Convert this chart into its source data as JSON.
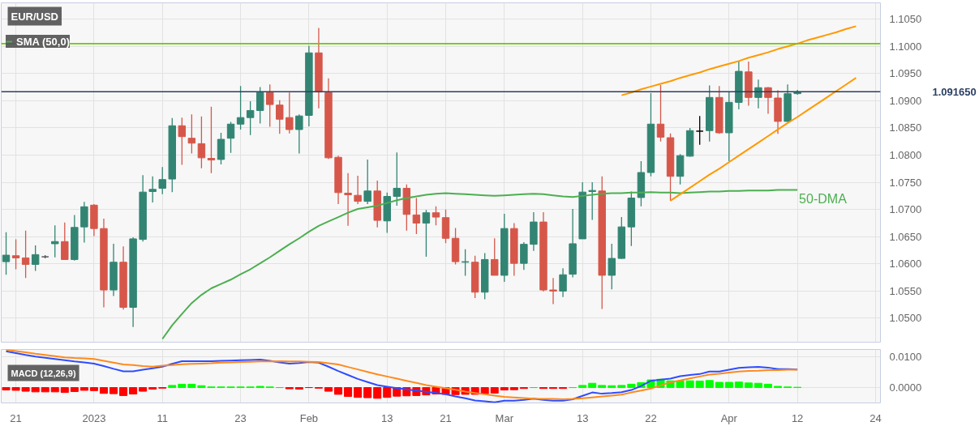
{
  "chart_data": [
    {
      "type": "candlestick",
      "title": "EUR/USD",
      "categories": [
        null,
        null,
        null,
        null,
        null,
        null,
        null,
        null,
        null,
        null,
        null,
        null,
        null,
        null,
        null,
        null,
        null,
        null,
        null,
        null,
        null,
        null,
        null,
        null,
        null,
        null,
        null,
        null,
        null,
        null,
        null,
        null,
        null,
        null,
        null,
        null,
        null,
        null,
        null,
        null,
        null,
        null,
        null,
        null,
        null,
        null,
        null,
        null,
        null,
        null,
        null,
        null,
        null,
        null,
        null,
        null,
        null,
        null,
        null,
        null,
        null,
        null,
        null,
        null,
        null,
        null,
        null,
        null,
        null,
        null,
        null,
        null,
        null,
        null,
        null,
        null,
        null,
        null,
        null,
        null,
        null,
        null,
        null,
        null,
        null,
        null,
        null,
        null,
        null,
        null
      ],
      "ohlc": [
        [
          1.0604,
          1.0658,
          1.058,
          1.0616
        ],
        [
          1.0615,
          1.0645,
          1.059,
          1.0611
        ],
        [
          1.0611,
          1.0661,
          1.0574,
          1.0599
        ],
        [
          1.0599,
          1.0634,
          1.0587,
          1.0617
        ],
        [
          1.0613,
          1.0616,
          1.061,
          1.0613
        ],
        [
          1.0637,
          1.0671,
          1.0612,
          1.0641
        ],
        [
          1.0641,
          1.0676,
          1.0608,
          1.0608
        ],
        [
          1.0608,
          1.069,
          1.0606,
          1.0667
        ],
        [
          1.0668,
          1.0714,
          1.0639,
          1.0705
        ],
        [
          1.0708,
          1.071,
          1.0651,
          1.0665
        ],
        [
          1.0665,
          1.0683,
          1.052,
          1.0552
        ],
        [
          1.0552,
          1.0637,
          1.0541,
          1.0603
        ],
        [
          1.0603,
          1.0632,
          1.0516,
          1.052
        ],
        [
          1.052,
          1.0649,
          1.0484,
          1.0646
        ],
        [
          1.0645,
          1.0763,
          1.0641,
          1.0732
        ],
        [
          1.0733,
          1.0761,
          1.0713,
          1.0737
        ],
        [
          1.0739,
          1.0778,
          1.0728,
          1.0755
        ],
        [
          1.0756,
          1.0868,
          1.0732,
          1.0854
        ],
        [
          1.0854,
          1.0869,
          1.0782,
          1.0834
        ],
        [
          1.0831,
          1.0875,
          1.0803,
          1.0822
        ],
        [
          1.0821,
          1.0871,
          1.0776,
          1.0795
        ],
        [
          1.0794,
          1.0889,
          1.0767,
          1.0791
        ],
        [
          1.0792,
          1.0841,
          1.0783,
          1.0829
        ],
        [
          1.0831,
          1.0861,
          1.0804,
          1.0857
        ],
        [
          1.0857,
          1.0927,
          1.0847,
          1.0869
        ],
        [
          1.0869,
          1.0899,
          1.0837,
          1.0882
        ],
        [
          1.0882,
          1.0925,
          1.0858,
          1.0915
        ],
        [
          1.0915,
          1.093,
          1.0852,
          1.0893
        ],
        [
          1.0892,
          1.0901,
          1.0839,
          1.0866
        ],
        [
          1.0869,
          1.0915,
          1.084,
          1.0847
        ],
        [
          1.0847,
          1.0875,
          1.0803,
          1.0872
        ],
        [
          1.0873,
          1.1001,
          1.0853,
          1.0988
        ],
        [
          1.0988,
          1.1034,
          1.0886,
          1.0916
        ],
        [
          1.0915,
          1.0941,
          1.0793,
          1.0795
        ],
        [
          1.0796,
          1.0799,
          1.071,
          1.0731
        ],
        [
          1.073,
          1.0767,
          1.067,
          1.0727
        ],
        [
          1.0726,
          1.0762,
          1.071,
          1.0715
        ],
        [
          1.0715,
          1.0792,
          1.071,
          1.0734
        ],
        [
          1.0734,
          1.0753,
          1.0667,
          1.068
        ],
        [
          1.0679,
          1.0731,
          1.0657,
          1.0724
        ],
        [
          1.0724,
          1.0805,
          1.0707,
          1.0739
        ],
        [
          1.0739,
          1.0746,
          1.0661,
          1.0691
        ],
        [
          1.069,
          1.0721,
          1.0655,
          1.0675
        ],
        [
          1.0675,
          1.0699,
          1.0613,
          1.0694
        ],
        [
          1.0694,
          1.0706,
          1.0671,
          1.0686
        ],
        [
          1.0685,
          1.07,
          1.0638,
          1.0647
        ],
        [
          1.0647,
          1.0666,
          1.0599,
          1.0604
        ],
        [
          1.0603,
          1.0627,
          1.0578,
          1.0604
        ],
        [
          1.0603,
          1.0615,
          1.0537,
          1.0548
        ],
        [
          1.0548,
          1.062,
          1.0535,
          1.0608
        ],
        [
          1.0608,
          1.0647,
          1.0579,
          1.0579
        ],
        [
          1.0579,
          1.0692,
          1.0567,
          1.0665
        ],
        [
          1.0665,
          1.0675,
          1.0578,
          1.0601
        ],
        [
          1.0601,
          1.064,
          1.0589,
          1.0636
        ],
        [
          1.0636,
          1.0695,
          1.0624,
          1.0677
        ],
        [
          1.0677,
          1.0695,
          1.0549,
          1.0552
        ],
        [
          1.0552,
          1.0574,
          1.0526,
          1.055
        ],
        [
          1.055,
          1.0592,
          1.0539,
          1.058
        ],
        [
          1.0581,
          1.0701,
          1.0575,
          1.0637
        ],
        [
          1.0646,
          1.075,
          1.0646,
          1.0732
        ],
        [
          1.0733,
          1.075,
          1.0681,
          1.0735
        ],
        [
          1.0734,
          1.0761,
          1.0517,
          1.0579
        ],
        [
          1.0579,
          1.0637,
          1.0553,
          1.061
        ],
        [
          1.061,
          1.0686,
          1.0609,
          1.0668
        ],
        [
          1.0668,
          1.0733,
          1.0633,
          1.0721
        ],
        [
          1.0722,
          1.0789,
          1.0706,
          1.0768
        ],
        [
          1.0768,
          1.0914,
          1.0761,
          1.0857
        ],
        [
          1.0857,
          1.0929,
          1.0825,
          1.0833
        ],
        [
          1.0832,
          1.084,
          1.0716,
          1.0761
        ],
        [
          1.0761,
          1.0802,
          1.0746,
          1.0799
        ],
        [
          1.0798,
          1.085,
          1.0797,
          1.0845
        ],
        [
          1.0844,
          1.0872,
          1.0819,
          1.0844
        ],
        [
          1.0845,
          1.0928,
          1.0825,
          1.0906
        ],
        [
          1.0906,
          1.0927,
          1.0839,
          1.0841
        ],
        [
          1.0841,
          1.0917,
          1.0789,
          1.0897
        ],
        [
          1.0897,
          1.0972,
          1.0884,
          1.0954
        ],
        [
          1.0953,
          1.0972,
          1.0891,
          1.0906
        ],
        [
          1.0906,
          1.0939,
          1.0886,
          1.0924
        ],
        [
          1.0924,
          1.0925,
          1.0876,
          1.0906
        ],
        [
          1.0905,
          1.0919,
          1.0839,
          1.0862
        ],
        [
          1.0862,
          1.093,
          1.0861,
          1.0913
        ],
        [
          1.0913,
          1.092,
          1.0911,
          1.0916
        ],
        null,
        null,
        null,
        null,
        null,
        null,
        null,
        null
      ],
      "colors": [
        "#338573",
        "#d6574a",
        "#d6574a",
        "#338573",
        "#555555",
        "#338573",
        "#d6574a",
        "#338573",
        "#338573",
        "#d6574a",
        "#d6574a",
        "#338573",
        "#d6574a",
        "#338573",
        "#338573",
        "#338573",
        "#338573",
        "#338573",
        "#d6574a",
        "#d6574a",
        "#d6574a",
        "#d6574a",
        "#338573",
        "#338573",
        "#338573",
        "#338573",
        "#338573",
        "#d6574a",
        "#d6574a",
        "#d6574a",
        "#338573",
        "#338573",
        "#d6574a",
        "#d6574a",
        "#d6574a",
        "#d6574a",
        "#d6574a",
        "#338573",
        "#d6574a",
        "#338573",
        "#338573",
        "#d6574a",
        "#d6574a",
        "#338573",
        "#d6574a",
        "#d6574a",
        "#d6574a",
        "#338573",
        "#d6574a",
        "#338573",
        "#d6574a",
        "#338573",
        "#d6574a",
        "#338573",
        "#338573",
        "#d6574a",
        "#d6574a",
        "#338573",
        "#338573",
        "#338573",
        "#338573",
        "#d6574a",
        "#338573",
        "#338573",
        "#338573",
        "#338573",
        "#338573",
        "#d6574a",
        "#d6574a",
        "#338573",
        "#338573",
        "#000000",
        "#338573",
        "#d6574a",
        "#338573",
        "#338573",
        "#d6574a",
        "#338573",
        "#d6574a",
        "#d6574a",
        "#338573",
        "#338573",
        null,
        null,
        null,
        null,
        null,
        null,
        null,
        null
      ],
      "series": [
        {
          "name": "SMA (50,0)",
          "type": "line",
          "color": "#4caf50",
          "values": [
            null,
            null,
            null,
            null,
            null,
            null,
            null,
            null,
            null,
            null,
            null,
            null,
            null,
            null,
            null,
            null,
            1.0462,
            1.0487,
            1.0508,
            1.0528,
            1.0543,
            1.0555,
            1.0563,
            1.0571,
            1.0581,
            1.059,
            1.0601,
            1.0612,
            1.0624,
            1.0636,
            1.0647,
            1.0659,
            1.067,
            1.0678,
            1.0686,
            1.0694,
            1.0701,
            1.0704,
            1.0707,
            1.0712,
            1.0717,
            1.0721,
            1.0724,
            1.0727,
            1.0729,
            1.073,
            1.0729,
            1.0728,
            1.0727,
            1.0726,
            1.0725,
            1.0726,
            1.0727,
            1.0728,
            1.0729,
            1.0728,
            1.0726,
            1.0724,
            1.0723,
            1.0725,
            1.0727,
            1.0729,
            1.073,
            1.073,
            1.0731,
            1.0731,
            1.0732,
            1.0731,
            1.0731,
            1.073,
            1.0731,
            1.0732,
            1.0733,
            1.0733,
            1.0734,
            1.0734,
            1.0735,
            1.0735,
            1.0735,
            1.0736,
            1.0736,
            1.0736,
            null,
            null,
            null,
            null,
            null,
            null,
            null,
            null
          ]
        },
        {
          "type": "line",
          "color": "#ff9900",
          "values": [
            null,
            null,
            null,
            null,
            null,
            null,
            null,
            null,
            null,
            null,
            null,
            null,
            null,
            null,
            null,
            null,
            null,
            null,
            null,
            null,
            null,
            null,
            null,
            null,
            null,
            null,
            null,
            null,
            null,
            null,
            null,
            null,
            null,
            null,
            null,
            null,
            null,
            null,
            null,
            null,
            null,
            null,
            null,
            null,
            null,
            null,
            null,
            null,
            null,
            null,
            null,
            null,
            null,
            null,
            null,
            null,
            null,
            null,
            null,
            null,
            null,
            null,
            null,
            1.091,
            1.0915,
            1.0921,
            1.0926,
            1.0931,
            1.0936,
            1.0942,
            1.0947,
            1.0952,
            1.0958,
            1.0963,
            1.0968,
            1.0973,
            1.0979,
            1.0984,
            1.0989,
            1.0995,
            1.1,
            1.1005,
            1.1011,
            1.1016,
            1.1021,
            1.1026,
            1.1032,
            1.1037,
            null,
            null
          ]
        },
        {
          "type": "line",
          "color": "#ff9900",
          "values": [
            null,
            null,
            null,
            null,
            null,
            null,
            null,
            null,
            null,
            null,
            null,
            null,
            null,
            null,
            null,
            null,
            null,
            null,
            null,
            null,
            null,
            null,
            null,
            null,
            null,
            null,
            null,
            null,
            null,
            null,
            null,
            null,
            null,
            null,
            null,
            null,
            null,
            null,
            null,
            null,
            null,
            null,
            null,
            null,
            null,
            null,
            null,
            null,
            null,
            null,
            null,
            null,
            null,
            null,
            null,
            null,
            null,
            null,
            null,
            null,
            null,
            null,
            null,
            null,
            null,
            null,
            null,
            null,
            1.0716,
            1.0728,
            1.074,
            1.0752,
            1.0764,
            1.0775,
            1.0787,
            1.0799,
            1.0811,
            1.0823,
            1.0835,
            1.0847,
            1.0859,
            1.087,
            1.0882,
            1.0894,
            1.0906,
            1.0918,
            1.093,
            1.0942,
            null,
            null
          ]
        }
      ],
      "ref_lines": [
        {
          "axis": "y",
          "value": 1.1005,
          "color": "#66cc00"
        },
        {
          "axis": "y",
          "value": 1.09165,
          "label": "1.091650",
          "color": "#2b3f63"
        }
      ],
      "annotations": [
        "50-DMA"
      ],
      "ylim": [
        1.0456,
        1.108
      ],
      "yticks": [
        {
          "value": 1.05,
          "label": "1.0500"
        },
        {
          "value": 1.055,
          "label": "1.0550"
        },
        {
          "value": 1.06,
          "label": "1.0600"
        },
        {
          "value": 1.065,
          "label": "1.0650"
        },
        {
          "value": 1.07,
          "label": "1.0700"
        },
        {
          "value": 1.075,
          "label": "1.0750"
        },
        {
          "value": 1.08,
          "label": "1.0800"
        },
        {
          "value": 1.085,
          "label": "1.0850"
        },
        {
          "value": 1.09,
          "label": "1.0900"
        },
        {
          "value": 1.095,
          "label": "1.0950"
        },
        {
          "value": 1.1,
          "label": "1.1000"
        },
        {
          "value": 1.105,
          "label": "1.1050"
        }
      ],
      "tick_labels": "y",
      "grid": true,
      "legend": "top left"
    },
    {
      "type": "bar",
      "title": "MACD (12,26,9)",
      "categories": [
        null,
        "21",
        null,
        null,
        null,
        null,
        null,
        null,
        null,
        "2023",
        null,
        null,
        null,
        null,
        null,
        null,
        "11",
        null,
        null,
        null,
        null,
        null,
        null,
        null,
        "23",
        null,
        null,
        null,
        null,
        null,
        null,
        "Feb",
        null,
        null,
        null,
        null,
        null,
        null,
        null,
        "13",
        null,
        null,
        null,
        null,
        null,
        "21",
        null,
        null,
        null,
        null,
        null,
        "Mar",
        null,
        null,
        null,
        null,
        null,
        null,
        null,
        "13",
        null,
        null,
        null,
        null,
        null,
        null,
        "22",
        null,
        null,
        null,
        null,
        null,
        null,
        null,
        "Apr",
        null,
        null,
        null,
        null,
        null,
        null,
        "12",
        null,
        null,
        null,
        null,
        null,
        null,
        null,
        "24"
      ],
      "series": [
        {
          "type": "bar",
          "values": [
            -0.0008,
            -0.0009,
            -0.0012,
            -0.0014,
            -0.0014,
            -0.0014,
            -0.0016,
            -0.0013,
            -0.0009,
            -0.001,
            -0.0019,
            -0.002,
            -0.0026,
            -0.0021,
            -0.0012,
            -0.0005,
            -0.0002,
            0.0007,
            0.0011,
            0.0011,
            0.0006,
            0.0002,
            0.0002,
            0.0002,
            0.0002,
            0.0002,
            0.0004,
            0.0002,
            0,
            -0.0004,
            -0.0005,
            0,
            -0.0002,
            -0.0012,
            -0.0022,
            -0.0029,
            -0.0032,
            -0.0033,
            -0.0035,
            -0.0032,
            -0.0028,
            -0.0027,
            -0.0026,
            -0.0024,
            -0.0021,
            -0.0022,
            -0.0023,
            -0.0022,
            -0.0022,
            -0.002,
            -0.0018,
            -0.0008,
            -0.0007,
            -0.0003,
            0,
            -0.0003,
            -0.0003,
            -0.0003,
            0,
            0.0007,
            0.0014,
            0.0007,
            0.0006,
            0.0007,
            0.0011,
            0.0016,
            0.0025,
            0.0027,
            0.0022,
            0.0021,
            0.0022,
            0.0021,
            0.0023,
            0.0017,
            0.0017,
            0.0018,
            0.0015,
            0.0014,
            0.0011,
            0.0004,
            0.0002,
            0.0001,
            null,
            null,
            null,
            null,
            null,
            null,
            null,
            null
          ],
          "colors": [
            "#ff0000",
            "#ff0000",
            "#ff0000",
            "#ff0000",
            "#ff0000",
            "#ff0000",
            "#ff0000",
            "#ff0000",
            "#ff0000",
            "#ff0000",
            "#ff0000",
            "#ff0000",
            "#ff0000",
            "#ff0000",
            "#ff0000",
            "#ff0000",
            "#ff0000",
            "#00ff00",
            "#00ff00",
            "#00ff00",
            "#00ff00",
            "#00ff00",
            "#00ff00",
            "#00ff00",
            "#00ff00",
            "#00ff00",
            "#00ff00",
            "#00ff00",
            "#00ff00",
            "#ff0000",
            "#ff0000",
            "#ff0000",
            "#ff0000",
            "#ff0000",
            "#ff0000",
            "#ff0000",
            "#ff0000",
            "#ff0000",
            "#ff0000",
            "#ff0000",
            "#ff0000",
            "#ff0000",
            "#ff0000",
            "#ff0000",
            "#ff0000",
            "#ff0000",
            "#ff0000",
            "#ff0000",
            "#ff0000",
            "#ff0000",
            "#ff0000",
            "#ff0000",
            "#ff0000",
            "#ff0000",
            "#00ff00",
            "#ff0000",
            "#ff0000",
            "#ff0000",
            "#00ff00",
            "#00ff00",
            "#00ff00",
            "#00ff00",
            "#00ff00",
            "#00ff00",
            "#00ff00",
            "#00ff00",
            "#00ff00",
            "#00ff00",
            "#00ff00",
            "#00ff00",
            "#00ff00",
            "#00ff00",
            "#00ff00",
            "#00ff00",
            "#00ff00",
            "#00ff00",
            "#00ff00",
            "#00ff00",
            "#00ff00",
            "#00ff00",
            "#00ff00",
            "#00ff00",
            null,
            null,
            null,
            null,
            null,
            null,
            null,
            null
          ]
        },
        {
          "type": "line",
          "color": "#2f4cff",
          "values": [
            0.0118,
            0.0112,
            0.0106,
            0.0101,
            0.0097,
            0.0093,
            0.0089,
            0.0085,
            0.0082,
            0.0078,
            0.007,
            0.0061,
            0.0053,
            0.0053,
            0.0058,
            0.0063,
            0.0068,
            0.0077,
            0.0086,
            0.0086,
            0.0086,
            0.0086,
            0.0087,
            0.0088,
            0.0089,
            0.009,
            0.0091,
            0.0087,
            0.0082,
            0.0078,
            0.008,
            0.0083,
            0.0081,
            0.0068,
            0.0054,
            0.0041,
            0.0028,
            0.0018,
            0.0008,
            0.0003,
            -0.0002,
            -0.0006,
            -0.001,
            -0.0014,
            -0.0018,
            -0.0022,
            -0.0029,
            -0.0035,
            -0.0042,
            -0.0045,
            -0.0048,
            -0.0043,
            -0.0043,
            -0.004,
            -0.0036,
            -0.004,
            -0.0043,
            -0.0043,
            -0.0038,
            -0.0027,
            -0.0016,
            -0.002,
            -0.0018,
            -0.0015,
            -0.0008,
            0.0005,
            0.0022,
            0.0026,
            0.0029,
            0.0037,
            0.0041,
            0.0044,
            0.0052,
            0.0052,
            0.0058,
            0.0064,
            0.0066,
            0.0067,
            0.0065,
            0.006,
            0.006,
            0.0059,
            null,
            null,
            null,
            null,
            null,
            null,
            null,
            null
          ]
        },
        {
          "type": "line",
          "color": "#ff8a1e",
          "values": [
            0.0123,
            0.0119,
            0.0115,
            0.011,
            0.0106,
            0.0102,
            0.0098,
            0.0096,
            0.0095,
            0.0093,
            0.0087,
            0.0081,
            0.0075,
            0.0073,
            0.007,
            0.0068,
            0.0071,
            0.0073,
            0.0076,
            0.0077,
            0.0078,
            0.0079,
            0.0081,
            0.0082,
            0.0083,
            0.0084,
            0.0085,
            0.0085,
            0.0086,
            0.0085,
            0.0085,
            0.0084,
            0.0083,
            0.0079,
            0.0075,
            0.0067,
            0.0059,
            0.0051,
            0.0043,
            0.0036,
            0.0029,
            0.0022,
            0.0015,
            0.0008,
            0.0003,
            -0.0002,
            -0.0007,
            -0.0013,
            -0.0018,
            -0.0022,
            -0.0026,
            -0.003,
            -0.0032,
            -0.0034,
            -0.0036,
            -0.0037,
            -0.0037,
            -0.0038,
            -0.0037,
            -0.0035,
            -0.0032,
            -0.0029,
            -0.0026,
            -0.0023,
            -0.0016,
            -0.001,
            -0.0003,
            0.0007,
            0.0017,
            0.0023,
            0.003,
            0.0036,
            0.0042,
            0.0045,
            0.0049,
            0.0052,
            0.0054,
            0.0055,
            0.0057,
            0.0057,
            0.0058,
            0.0058,
            null,
            null,
            null,
            null,
            null,
            null,
            null,
            null
          ]
        }
      ],
      "ylim": [
        -0.005,
        0.0124
      ],
      "yticks": [
        {
          "value": 0,
          "label": "0.0000"
        },
        {
          "value": 0.01,
          "label": "0.0100"
        }
      ],
      "grid": true
    }
  ]
}
